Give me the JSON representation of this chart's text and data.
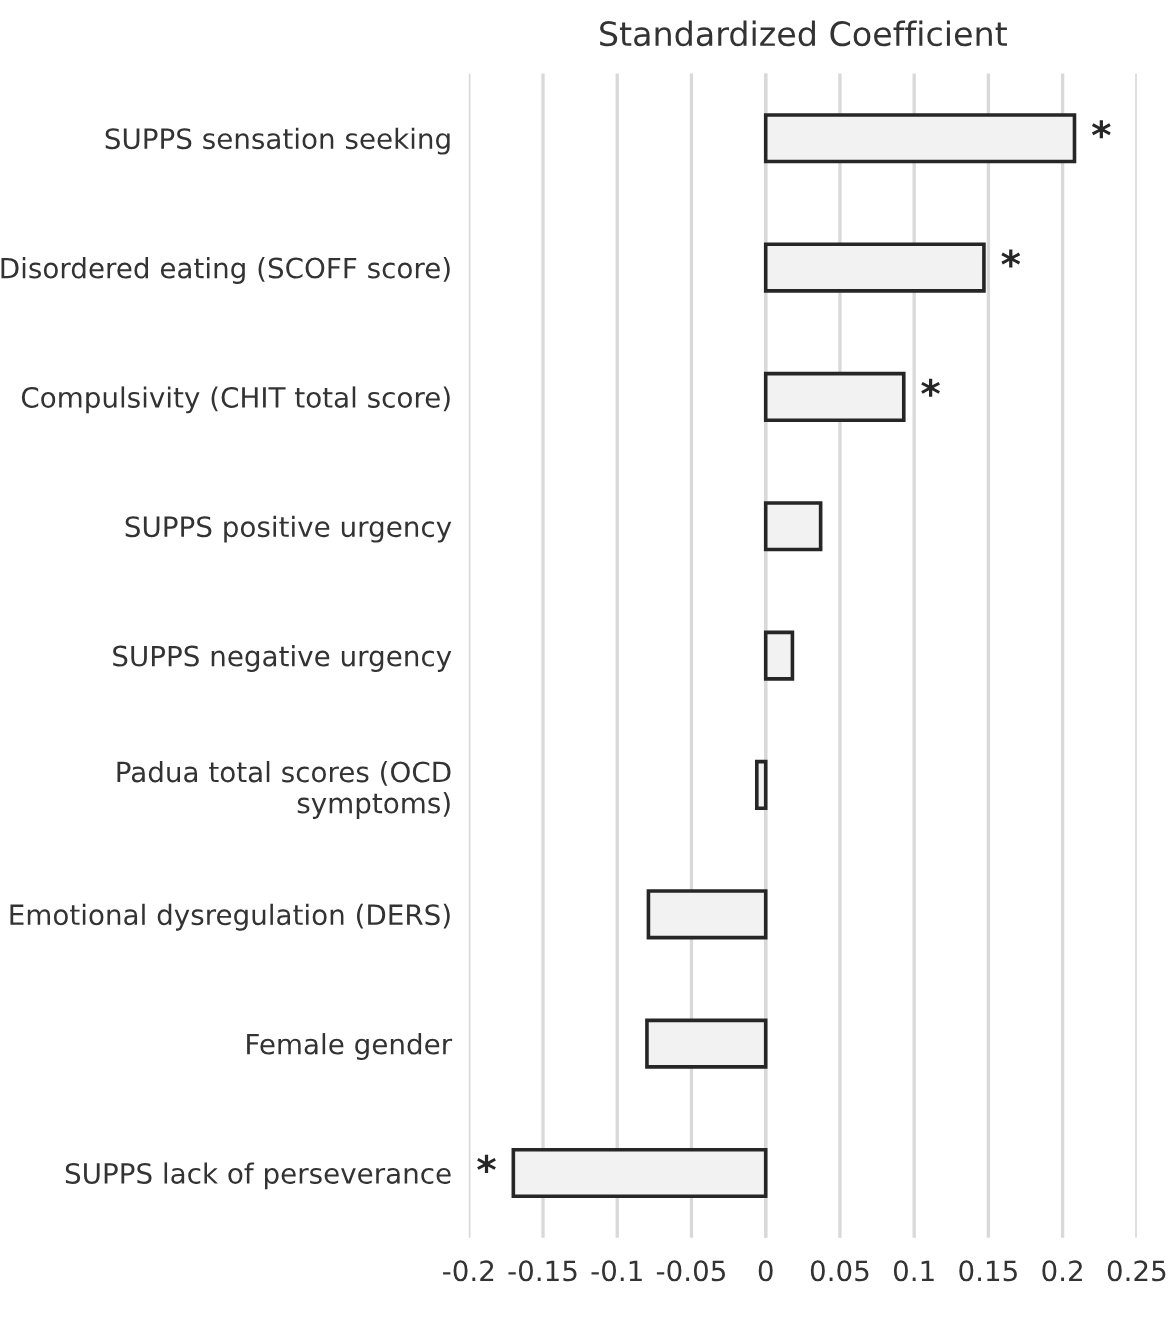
{
  "chart_data": {
    "type": "bar",
    "orientation": "horizontal",
    "title": "Standardized Coefficient",
    "categories": [
      "SUPPS sensation seeking",
      "Disordered eating (SCOFF score)",
      "Compulsivity (CHIT total score)",
      "SUPPS positive urgency",
      "SUPPS negative urgency",
      "Padua total scores (OCD\nsymptoms)",
      "Emotional dysregulation (DERS)",
      "Female gender",
      "SUPPS lack of perseverance"
    ],
    "values": [
      0.208,
      0.147,
      0.093,
      0.037,
      0.018,
      -0.006,
      -0.079,
      -0.08,
      -0.17
    ],
    "color": "#f2f2f2",
    "xlim": [
      -0.2,
      0.25
    ],
    "xticks": [
      -0.2,
      -0.15,
      -0.1,
      -0.05,
      0,
      0.05,
      0.1,
      0.15,
      0.2,
      0.25
    ],
    "grid": "x",
    "annotations": [
      {
        "text": "*",
        "x": 0.208,
        "y": "SUPPS sensation seeking"
      },
      {
        "text": "*",
        "x": 0.147,
        "y": "Disordered eating (SCOFF score)"
      },
      {
        "text": "*",
        "x": 0.093,
        "y": "Compulsivity (CHIT total score)"
      },
      {
        "text": "*",
        "x": -0.17,
        "y": "SUPPS lack of perseverance"
      }
    ]
  }
}
